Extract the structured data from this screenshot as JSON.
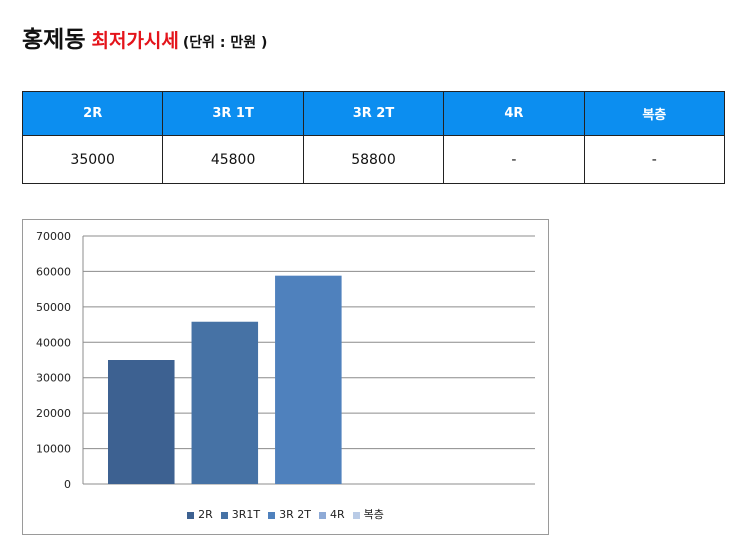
{
  "header": {
    "title": "홍제동",
    "subtitle": "최저가시세",
    "unit": "(단위 : 만원 )"
  },
  "table": {
    "headers": [
      "2R",
      "3R 1T",
      "3R 2T",
      "4R",
      "복층"
    ],
    "values": [
      "35000",
      "45800",
      "58800",
      "-",
      "-"
    ]
  },
  "chart_data": {
    "type": "bar",
    "categories": [
      "2R",
      "3R1T",
      "3R 2T",
      "4R",
      "복층"
    ],
    "values": [
      35000,
      45800,
      58800,
      null,
      null
    ],
    "ylim": [
      0,
      70000
    ],
    "yticks": [
      0,
      10000,
      20000,
      30000,
      40000,
      50000,
      60000,
      70000
    ],
    "grid": true,
    "legend": "bottom",
    "colors": [
      "#3d6191",
      "#4672a5",
      "#4f81bd",
      "#8eaad6",
      "#b9cbe6"
    ]
  }
}
